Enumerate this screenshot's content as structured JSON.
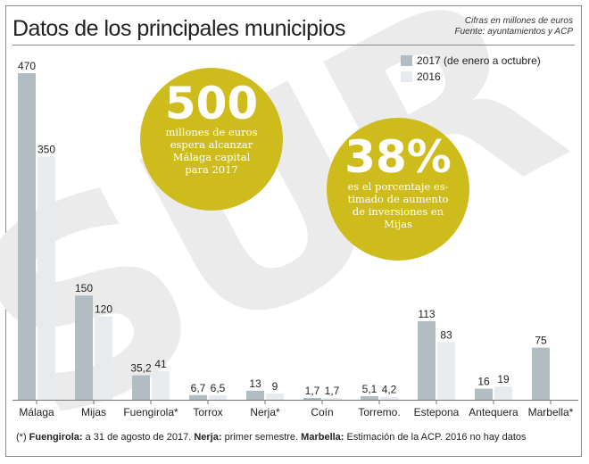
{
  "header": {
    "title": "Datos de los principales municipios",
    "units": "Cifras en millones de euros",
    "source": "Fuente: ayuntamientos y ACP"
  },
  "watermark": "SUR",
  "colors": {
    "series_2017": "#b2bdc3",
    "series_2016": "#e7ebef",
    "bubble": "#cdbc1b",
    "watermark": "#ebebeb"
  },
  "callouts": [
    {
      "value": "500",
      "lines": [
        "millones de euros",
        "espera alcanzar",
        "Málaga capital",
        "para 2017"
      ]
    },
    {
      "value": "38%",
      "lines": [
        "es el porcentaje es-",
        "timado de aumento",
        "de inversiones en",
        "Mijas"
      ]
    }
  ],
  "footnote": {
    "prefix": "(*)",
    "fuengirola_label": "Fuengirola:",
    "fuengirola_text": " a 31 de agosto de 2017.",
    "nerja_label": "Nerja:",
    "nerja_text": " primer semestre.",
    "marbella_label": "Marbella:",
    "marbella_text": " Estimación de la ACP. 2016 no hay datos"
  },
  "chart_data": {
    "type": "bar",
    "title": "Datos de los principales municipios",
    "categories": [
      "Málaga",
      "Mijas",
      "Fuengirola*",
      "Torrox",
      "Nerja*",
      "Coín",
      "Torremo.",
      "Estepona",
      "Antequera",
      "Marbella*"
    ],
    "series": [
      {
        "name": "2017 (de enero a octubre)",
        "values": [
          470,
          150,
          35.2,
          6.7,
          13,
          1.7,
          5.1,
          113,
          16,
          75
        ],
        "labels": [
          "470",
          "150",
          "35,2",
          "6,7",
          "13",
          "1,7",
          "5,1",
          "113",
          "16",
          "75"
        ]
      },
      {
        "name": "2016",
        "values": [
          350,
          120,
          41,
          6.5,
          9,
          1.7,
          4.2,
          83,
          19,
          null
        ],
        "labels": [
          "350",
          "120",
          "41",
          "6,5",
          "9",
          "1,7",
          "4,2",
          "83",
          "19",
          ""
        ]
      }
    ],
    "legend": "top-right",
    "grid": false
  }
}
